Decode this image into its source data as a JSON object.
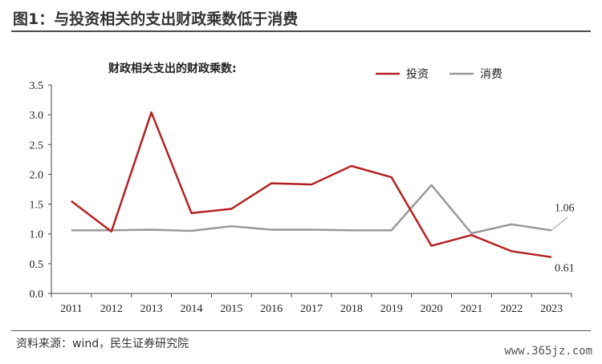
{
  "figure": {
    "title": "图1：与投资相关的支出财政乘数低于消费",
    "source": "资料来源：wind，民生证券研究院",
    "watermark": "www.365jz.com"
  },
  "chart_data": {
    "type": "line",
    "title": "财政相关支出的财政乘数:",
    "xlabel": "",
    "ylabel": "",
    "categories": [
      "2011",
      "2012",
      "2013",
      "2014",
      "2015",
      "2016",
      "2017",
      "2018",
      "2019",
      "2020",
      "2021",
      "2022",
      "2023"
    ],
    "series": [
      {
        "name": "投资",
        "color": "#b22222",
        "values": [
          1.55,
          1.04,
          3.04,
          1.35,
          1.42,
          1.85,
          1.83,
          2.14,
          1.95,
          0.8,
          0.98,
          0.71,
          0.61
        ]
      },
      {
        "name": "消费",
        "color": "#999999",
        "values": [
          1.06,
          1.06,
          1.07,
          1.05,
          1.13,
          1.07,
          1.07,
          1.06,
          1.06,
          1.82,
          1.01,
          1.16,
          1.06
        ]
      }
    ],
    "ylim": [
      0,
      3.5
    ],
    "yticks": [
      "0.0",
      "0.5",
      "1.0",
      "1.5",
      "2.0",
      "2.5",
      "3.0",
      "3.5"
    ],
    "annotations": [
      {
        "series": 1,
        "index": 12,
        "text": "1.06"
      },
      {
        "series": 0,
        "index": 12,
        "text": "0.61"
      }
    ],
    "legend": "top-right",
    "grid": false
  }
}
